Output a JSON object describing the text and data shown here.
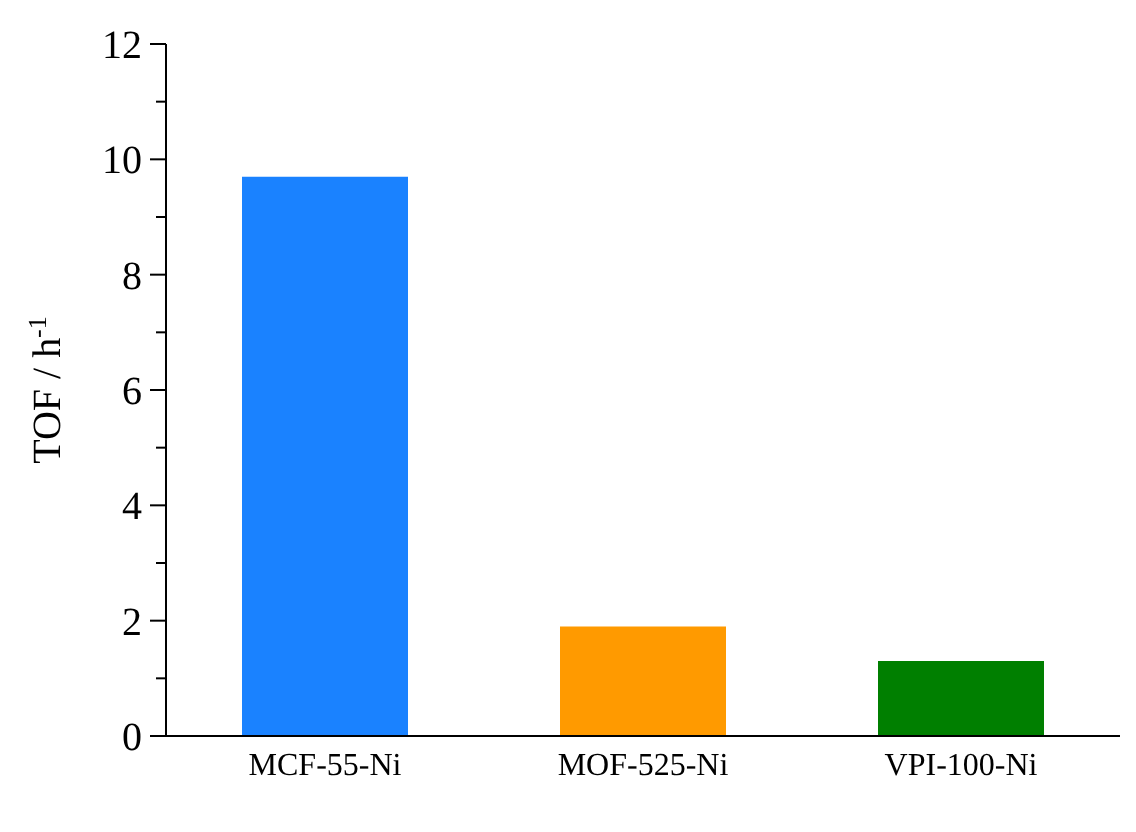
{
  "chart_data": {
    "type": "bar",
    "ylabel": "TOF / h$^{-1}$",
    "categories": [
      "MCF-55-Ni",
      "MOF-525-Ni",
      "VPI-100-Ni"
    ],
    "values": [
      9.7,
      1.9,
      1.3
    ],
    "colors": [
      "#1a82ff",
      "#ff9a00",
      "#007f00"
    ],
    "ylim": [
      0,
      12
    ],
    "yticks": [
      0,
      {
        "value": 1,
        "label": null
      },
      2,
      {
        "value": 3,
        "label": null
      },
      4,
      {
        "value": 5,
        "label": null
      },
      6,
      {
        "value": 7,
        "label": null
      },
      8,
      {
        "value": 9,
        "label": null
      },
      10,
      {
        "value": 11,
        "label": null
      },
      12
    ],
    "grid": false,
    "legend": false
  }
}
